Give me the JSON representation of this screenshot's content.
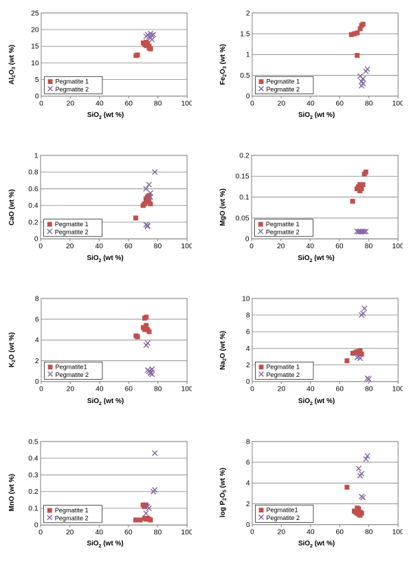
{
  "global": {
    "xlabel_html": "SiO<sub>2</sub> (wt %)",
    "xlim": [
      0,
      100
    ],
    "xtick_step": 20,
    "plot_width_ratio": 1.45,
    "series": {
      "peg1": {
        "label": "Pegmatite 1",
        "marker": "square",
        "color": "#c0504d"
      },
      "peg2": {
        "label": "Pegmatite 2",
        "marker": "x",
        "color": "#8064a2"
      }
    },
    "grid_color": "#808080",
    "background": "#ffffff",
    "label_fontsize": 10,
    "tick_fontsize": 9,
    "legend_pos": "lower-left"
  },
  "panels": [
    {
      "id": "al2o3",
      "ylabel_html": "Al<sub>2</sub>O<sub>3</sub> (wt %)",
      "ylim": [
        0,
        25
      ],
      "ytick_step": 5,
      "peg1": [
        [
          65,
          12.2
        ],
        [
          66,
          12.4
        ],
        [
          70,
          16.0
        ],
        [
          71,
          15.5
        ],
        [
          72,
          16.2
        ],
        [
          72,
          15.2
        ],
        [
          73,
          15.8
        ],
        [
          74,
          15.0
        ],
        [
          74,
          14.5
        ],
        [
          75,
          14.2
        ]
      ],
      "peg2": [
        [
          72,
          18.0
        ],
        [
          73,
          18.5
        ],
        [
          74,
          17.8
        ],
        [
          75,
          18.8
        ],
        [
          75,
          17.5
        ],
        [
          76,
          18.2
        ],
        [
          76,
          17.0
        ],
        [
          77,
          18.5
        ]
      ],
      "legend": {
        "peg1": "Pegmatite 1",
        "peg2": "Pegmatite 2"
      }
    },
    {
      "id": "fe2o3",
      "ylabel_html": "Fe<sub>2</sub>O<sub>3</sub> (wt %)",
      "ylim": [
        0,
        2
      ],
      "ytick_step": 0.5,
      "peg1": [
        [
          68,
          1.48
        ],
        [
          70,
          1.5
        ],
        [
          72,
          1.52
        ],
        [
          74,
          1.62
        ],
        [
          75,
          1.7
        ],
        [
          76,
          1.73
        ],
        [
          72,
          0.98
        ]
      ],
      "peg2": [
        [
          74,
          0.48
        ],
        [
          75,
          0.35
        ],
        [
          76,
          0.42
        ],
        [
          76,
          0.3
        ],
        [
          78,
          0.6
        ],
        [
          79,
          0.65
        ],
        [
          75,
          0.25
        ]
      ],
      "legend": {
        "peg1": "Pegmatite 1",
        "peg2": "Pegmatite 2"
      }
    },
    {
      "id": "cao",
      "ylabel_html": "CaO (wt %)",
      "ylim": [
        0,
        1
      ],
      "ytick_step": 0.2,
      "peg1": [
        [
          65,
          0.25
        ],
        [
          70,
          0.4
        ],
        [
          71,
          0.42
        ],
        [
          72,
          0.45
        ],
        [
          72,
          0.48
        ],
        [
          73,
          0.5
        ],
        [
          73,
          0.44
        ],
        [
          74,
          0.52
        ],
        [
          74,
          0.47
        ],
        [
          75,
          0.42
        ]
      ],
      "peg2": [
        [
          72,
          0.6
        ],
        [
          74,
          0.65
        ],
        [
          75,
          0.55
        ],
        [
          75,
          0.5
        ],
        [
          78,
          0.8
        ],
        [
          72,
          0.17
        ],
        [
          73,
          0.16
        ],
        [
          73,
          0.15
        ]
      ],
      "legend": {
        "peg1": "Pegmatite 1",
        "peg2": "Pegmatite 2"
      }
    },
    {
      "id": "mgo",
      "ylabel_html": "MgO (wt %)",
      "ylim": [
        0,
        0.2
      ],
      "ytick_step": 0.05,
      "peg1": [
        [
          69,
          0.09
        ],
        [
          72,
          0.12
        ],
        [
          73,
          0.125
        ],
        [
          74,
          0.13
        ],
        [
          74,
          0.115
        ],
        [
          75,
          0.12
        ],
        [
          76,
          0.13
        ],
        [
          77,
          0.155
        ],
        [
          78,
          0.16
        ]
      ],
      "peg2": [
        [
          72,
          0.018
        ],
        [
          73,
          0.017
        ],
        [
          74,
          0.018
        ],
        [
          75,
          0.017
        ],
        [
          76,
          0.018
        ],
        [
          77,
          0.017
        ],
        [
          78,
          0.018
        ]
      ],
      "legend": {
        "peg1": "Pegmatite 1",
        "peg2": "Pegmatite 2"
      }
    },
    {
      "id": "k2o",
      "ylabel_html": "K<sub>2</sub>O (wt %)",
      "ylim": [
        0,
        8
      ],
      "ytick_step": 2,
      "peg1": [
        [
          65,
          4.4
        ],
        [
          66,
          4.3
        ],
        [
          70,
          5.2
        ],
        [
          71,
          5.0
        ],
        [
          72,
          5.4
        ],
        [
          73,
          5.0
        ],
        [
          74,
          4.8
        ],
        [
          71,
          6.1
        ],
        [
          72,
          6.2
        ]
      ],
      "peg2": [
        [
          72,
          3.5
        ],
        [
          73,
          3.7
        ],
        [
          73,
          1.1
        ],
        [
          74,
          1.0
        ],
        [
          75,
          0.9
        ],
        [
          75,
          0.8
        ],
        [
          76,
          1.2
        ],
        [
          76,
          0.7
        ]
      ],
      "legend": {
        "peg1": "Pegmatite1",
        "peg2": "Pegmatite 2"
      }
    },
    {
      "id": "na2o",
      "ylabel_html": "Na<sub>2</sub>O (wt %)",
      "ylim": [
        0,
        10
      ],
      "ytick_step": 2,
      "peg1": [
        [
          65,
          2.5
        ],
        [
          69,
          3.4
        ],
        [
          71,
          3.5
        ],
        [
          72,
          3.6
        ],
        [
          73,
          3.4
        ],
        [
          74,
          3.7
        ],
        [
          75,
          3.3
        ]
      ],
      "peg2": [
        [
          75,
          8.0
        ],
        [
          76,
          8.2
        ],
        [
          77,
          8.8
        ],
        [
          72,
          2.9
        ],
        [
          73,
          3.0
        ],
        [
          74,
          2.8
        ],
        [
          79,
          0.4
        ],
        [
          80,
          0.3
        ]
      ],
      "legend": {
        "peg1": "Pegmatite 1",
        "peg2": "Pegmatite 2"
      }
    },
    {
      "id": "mno",
      "ylabel_html": "MnO (wt %)",
      "ylim": [
        0,
        0.5
      ],
      "ytick_step": 0.1,
      "peg1": [
        [
          65,
          0.03
        ],
        [
          68,
          0.03
        ],
        [
          70,
          0.12
        ],
        [
          71,
          0.11
        ],
        [
          72,
          0.12
        ],
        [
          71,
          0.04
        ],
        [
          72,
          0.035
        ],
        [
          73,
          0.04
        ],
        [
          74,
          0.035
        ],
        [
          75,
          0.03
        ]
      ],
      "peg2": [
        [
          72,
          0.07
        ],
        [
          73,
          0.11
        ],
        [
          74,
          0.1
        ],
        [
          77,
          0.2
        ],
        [
          78,
          0.21
        ],
        [
          78,
          0.43
        ]
      ],
      "legend": {
        "peg1": "Pegmatite 1",
        "peg2": "Pegmatite 2"
      }
    },
    {
      "id": "p2o5",
      "ylabel_html": "log P<sub>2</sub>O<sub>5</sub> (wt %)",
      "ylim": [
        0,
        8
      ],
      "ytick_step": 2,
      "peg1": [
        [
          65,
          3.6
        ],
        [
          70,
          1.3
        ],
        [
          71,
          1.2
        ],
        [
          72,
          1.6
        ],
        [
          72,
          1.1
        ],
        [
          73,
          1.5
        ],
        [
          73,
          1.0
        ],
        [
          74,
          1.2
        ],
        [
          74,
          0.9
        ],
        [
          75,
          1.1
        ]
      ],
      "peg2": [
        [
          74,
          4.7
        ],
        [
          75,
          4.9
        ],
        [
          78,
          6.3
        ],
        [
          79,
          6.6
        ],
        [
          75,
          2.7
        ],
        [
          76,
          2.6
        ],
        [
          73,
          5.4
        ]
      ],
      "legend": {
        "peg1": "Pegmatite1",
        "peg2": "Pegmatite 2"
      }
    }
  ]
}
